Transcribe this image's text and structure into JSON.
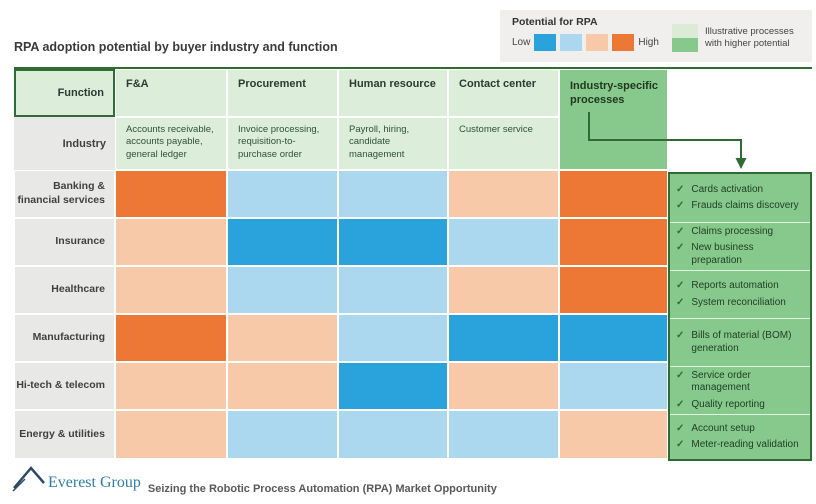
{
  "page": {
    "title": "RPA adoption potential by buyer industry and function"
  },
  "legend": {
    "title": "Potential for RPA",
    "low_label": "Low",
    "high_label": "High",
    "green_label": "Illustrative processes with higher potential"
  },
  "colors": {
    "low": "#2AA3DC",
    "med_low": "#ABD8EE",
    "med_high": "#F7C9A9",
    "high": "#ED7734",
    "header_green": "#DCEDDA",
    "process_green": "#87C98D",
    "legend_green_light": "#DCEBD5",
    "border_green": "#2E6B35",
    "label_gray": "#E8E8E7",
    "legend_bg": "#F0EFED"
  },
  "table": {
    "corner_function": "Function",
    "corner_industry": "Industry",
    "industry_specific_header": "Industry-specific processes",
    "columns": [
      {
        "label": "F&A",
        "description": "Accounts receivable, accounts payable, general ledger"
      },
      {
        "label": "Procurement",
        "description": "Invoice processing, requisition-to-purchase order"
      },
      {
        "label": "Human resource",
        "description": "Payroll, hiring, candidate management"
      },
      {
        "label": "Contact center",
        "description": "Customer service"
      }
    ]
  },
  "chart_data": {
    "type": "heatmap",
    "title": "RPA adoption potential by buyer industry and function",
    "legend_title": "Potential for RPA",
    "value_scale_low_to_high": [
      "low",
      "med_low",
      "med_high",
      "high"
    ],
    "categories": [
      "F&A",
      "Procurement",
      "Human resource",
      "Contact center",
      "Industry-specific processes"
    ],
    "rows": [
      {
        "industry": "Banking & financial services",
        "values": [
          "high",
          "med_low",
          "med_low",
          "med_high",
          "high"
        ],
        "processes": [
          "Cards activation",
          "Frauds claims discovery"
        ]
      },
      {
        "industry": "Insurance",
        "values": [
          "med_high",
          "low",
          "low",
          "med_low",
          "high"
        ],
        "processes": [
          "Claims processing",
          "New business preparation"
        ]
      },
      {
        "industry": "Healthcare",
        "values": [
          "med_high",
          "med_low",
          "med_low",
          "med_high",
          "high"
        ],
        "processes": [
          "Reports automation",
          "System reconciliation"
        ]
      },
      {
        "industry": "Manufacturing",
        "values": [
          "high",
          "med_high",
          "med_low",
          "low",
          "low"
        ],
        "processes": [
          "Bills of material (BOM) generation"
        ]
      },
      {
        "industry": "Hi-tech & telecom",
        "values": [
          "med_high",
          "med_high",
          "low",
          "med_high",
          "med_low"
        ],
        "processes": [
          "Service order management",
          "Quality reporting"
        ]
      },
      {
        "industry": "Energy & utilities",
        "values": [
          "med_high",
          "med_low",
          "med_low",
          "med_low",
          "med_high"
        ],
        "processes": [
          "Account setup",
          "Meter-reading validation"
        ]
      }
    ]
  },
  "footer": {
    "logo": "Everest Group",
    "tagline": "Seizing the Robotic Process Automation (RPA) Market Opportunity"
  }
}
